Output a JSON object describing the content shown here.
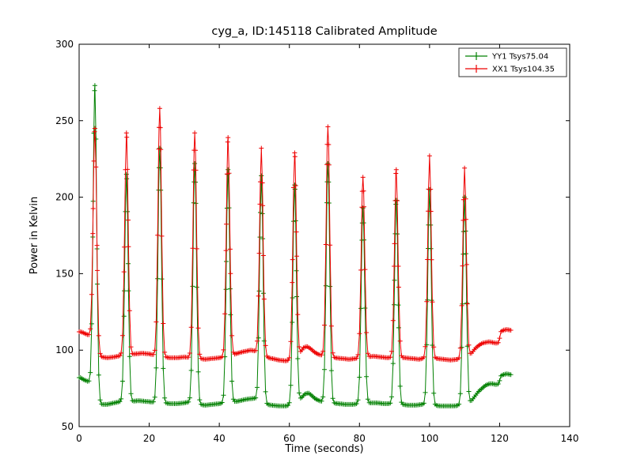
{
  "figure": {
    "title": "cyg_a, ID:145118 Calibrated Amplitude",
    "xlabel": "Time (seconds)",
    "ylabel": "Power in Kelvin"
  },
  "legend": {
    "items": [
      {
        "label": "YY1 Tsys75.04",
        "color": "#008000"
      },
      {
        "label": "XX1 Tsys104.35",
        "color": "#ee0000"
      }
    ]
  },
  "chart_data": {
    "type": "line",
    "title": "cyg_a, ID:145118 Calibrated Amplitude",
    "xlabel": "Time (seconds)",
    "ylabel": "Power in Kelvin",
    "xlim": [
      0,
      140
    ],
    "ylim": [
      50,
      300
    ],
    "xticks": [
      0,
      20,
      40,
      60,
      80,
      100,
      120,
      140
    ],
    "yticks": [
      50,
      100,
      150,
      200,
      250,
      300
    ],
    "grid": false,
    "legend_position": "upper right",
    "marker": "+",
    "sample_step": 0.4,
    "t_range": [
      0,
      123.2
    ],
    "spike_sigma": 0.5,
    "series": [
      {
        "name": "YY1 Tsys75.04",
        "color": "#008000",
        "baseline": [
          [
            0,
            82
          ],
          [
            0.5,
            82
          ],
          [
            1,
            81
          ],
          [
            1.5,
            80.5
          ],
          [
            2,
            80
          ],
          [
            2.5,
            79.5
          ],
          [
            3,
            79
          ],
          [
            3.8,
            77
          ],
          [
            5.5,
            66
          ],
          [
            6.5,
            64.5
          ],
          [
            8,
            64.5
          ],
          [
            10,
            65.5
          ],
          [
            12,
            66.5
          ],
          [
            15,
            66.5
          ],
          [
            17,
            67
          ],
          [
            19,
            66.5
          ],
          [
            21,
            66
          ],
          [
            24,
            65.5
          ],
          [
            26,
            65
          ],
          [
            28,
            65
          ],
          [
            30,
            65.5
          ],
          [
            31,
            66
          ],
          [
            34,
            64.5
          ],
          [
            36,
            64
          ],
          [
            38,
            64.5
          ],
          [
            40,
            65
          ],
          [
            43,
            66
          ],
          [
            45,
            66.5
          ],
          [
            47,
            67.5
          ],
          [
            48,
            68
          ],
          [
            50,
            68.5
          ],
          [
            51,
            67
          ],
          [
            53,
            64.5
          ],
          [
            55,
            64
          ],
          [
            57,
            63.5
          ],
          [
            59,
            63.5
          ],
          [
            62,
            65
          ],
          [
            63.5,
            69
          ],
          [
            64.5,
            71.5
          ],
          [
            65.5,
            72
          ],
          [
            66.5,
            70
          ],
          [
            67.5,
            68
          ],
          [
            69,
            66.5
          ],
          [
            72,
            65.5
          ],
          [
            74,
            65
          ],
          [
            76,
            64.5
          ],
          [
            78,
            64.5
          ],
          [
            80,
            65
          ],
          [
            83,
            65.5
          ],
          [
            85,
            65.5
          ],
          [
            87,
            65
          ],
          [
            89,
            65
          ],
          [
            92,
            64.5
          ],
          [
            94,
            64
          ],
          [
            96,
            64
          ],
          [
            98,
            64.5
          ],
          [
            101,
            64
          ],
          [
            103,
            63.5
          ],
          [
            105,
            63.5
          ],
          [
            107,
            63.5
          ],
          [
            109,
            64
          ],
          [
            111,
            65
          ],
          [
            112,
            67
          ],
          [
            113,
            70
          ],
          [
            114,
            73
          ],
          [
            115,
            75
          ],
          [
            116,
            77
          ],
          [
            117,
            78
          ],
          [
            118,
            78
          ],
          [
            119,
            77.5
          ],
          [
            119.8,
            78
          ],
          [
            120.3,
            83
          ],
          [
            121,
            84
          ],
          [
            122,
            84.5
          ],
          [
            123.2,
            84
          ]
        ],
        "spikes": [
          [
            4.5,
            273
          ],
          [
            13.5,
            215
          ],
          [
            23,
            232
          ],
          [
            33,
            222
          ],
          [
            42.5,
            218
          ],
          [
            52,
            214
          ],
          [
            61.5,
            208
          ],
          [
            71,
            222
          ],
          [
            81,
            193
          ],
          [
            90.5,
            198
          ],
          [
            100,
            205
          ],
          [
            110,
            200
          ]
        ]
      },
      {
        "name": "XX1 Tsys104.35",
        "color": "#ee0000",
        "baseline": [
          [
            0,
            112
          ],
          [
            0.5,
            112
          ],
          [
            1,
            111.5
          ],
          [
            1.5,
            111
          ],
          [
            2,
            110.5
          ],
          [
            2.5,
            110
          ],
          [
            3,
            109.5
          ],
          [
            3.8,
            108
          ],
          [
            5.5,
            97
          ],
          [
            6.5,
            95.5
          ],
          [
            8,
            95
          ],
          [
            10,
            95.5
          ],
          [
            12,
            96.5
          ],
          [
            14,
            97
          ],
          [
            16,
            97.5
          ],
          [
            18,
            98
          ],
          [
            20,
            97.5
          ],
          [
            22,
            96.5
          ],
          [
            24,
            95.5
          ],
          [
            26,
            95
          ],
          [
            28,
            95
          ],
          [
            30,
            95.5
          ],
          [
            32,
            95
          ],
          [
            34,
            94.5
          ],
          [
            36,
            94
          ],
          [
            38,
            94.5
          ],
          [
            40,
            95
          ],
          [
            42,
            95.5
          ],
          [
            44,
            97
          ],
          [
            46,
            98.5
          ],
          [
            47,
            99
          ],
          [
            48,
            99.5
          ],
          [
            49,
            100
          ],
          [
            50,
            99.5
          ],
          [
            51,
            98
          ],
          [
            53,
            95.5
          ],
          [
            55,
            94.5
          ],
          [
            57,
            93.5
          ],
          [
            59,
            93
          ],
          [
            61,
            94
          ],
          [
            63,
            98
          ],
          [
            64,
            101.5
          ],
          [
            65,
            102.5
          ],
          [
            66,
            101
          ],
          [
            67,
            99
          ],
          [
            68,
            97.5
          ],
          [
            70,
            96
          ],
          [
            73,
            95
          ],
          [
            75,
            94.5
          ],
          [
            77,
            94
          ],
          [
            79,
            94.5
          ],
          [
            82,
            95.5
          ],
          [
            84,
            96
          ],
          [
            86,
            95.5
          ],
          [
            88,
            95
          ],
          [
            90,
            95
          ],
          [
            93,
            95
          ],
          [
            95,
            94.5
          ],
          [
            97,
            94
          ],
          [
            99,
            95
          ],
          [
            102,
            94.5
          ],
          [
            104,
            94
          ],
          [
            106,
            93.5
          ],
          [
            108,
            94
          ],
          [
            110,
            95
          ],
          [
            111,
            96
          ],
          [
            112,
            98
          ],
          [
            113,
            101
          ],
          [
            114,
            103
          ],
          [
            115,
            104.5
          ],
          [
            116,
            105
          ],
          [
            117,
            105.5
          ],
          [
            118,
            105
          ],
          [
            119,
            104.5
          ],
          [
            119.8,
            105
          ],
          [
            120.3,
            112
          ],
          [
            121,
            113
          ],
          [
            122,
            113.5
          ],
          [
            123.2,
            113
          ]
        ],
        "spikes": [
          [
            4.5,
            245
          ],
          [
            13.5,
            242
          ],
          [
            23,
            258
          ],
          [
            33,
            242
          ],
          [
            42.5,
            239
          ],
          [
            52,
            232
          ],
          [
            61.5,
            229
          ],
          [
            71,
            246
          ],
          [
            81,
            213
          ],
          [
            90.5,
            218
          ],
          [
            100,
            227
          ],
          [
            110,
            219
          ]
        ]
      }
    ]
  }
}
